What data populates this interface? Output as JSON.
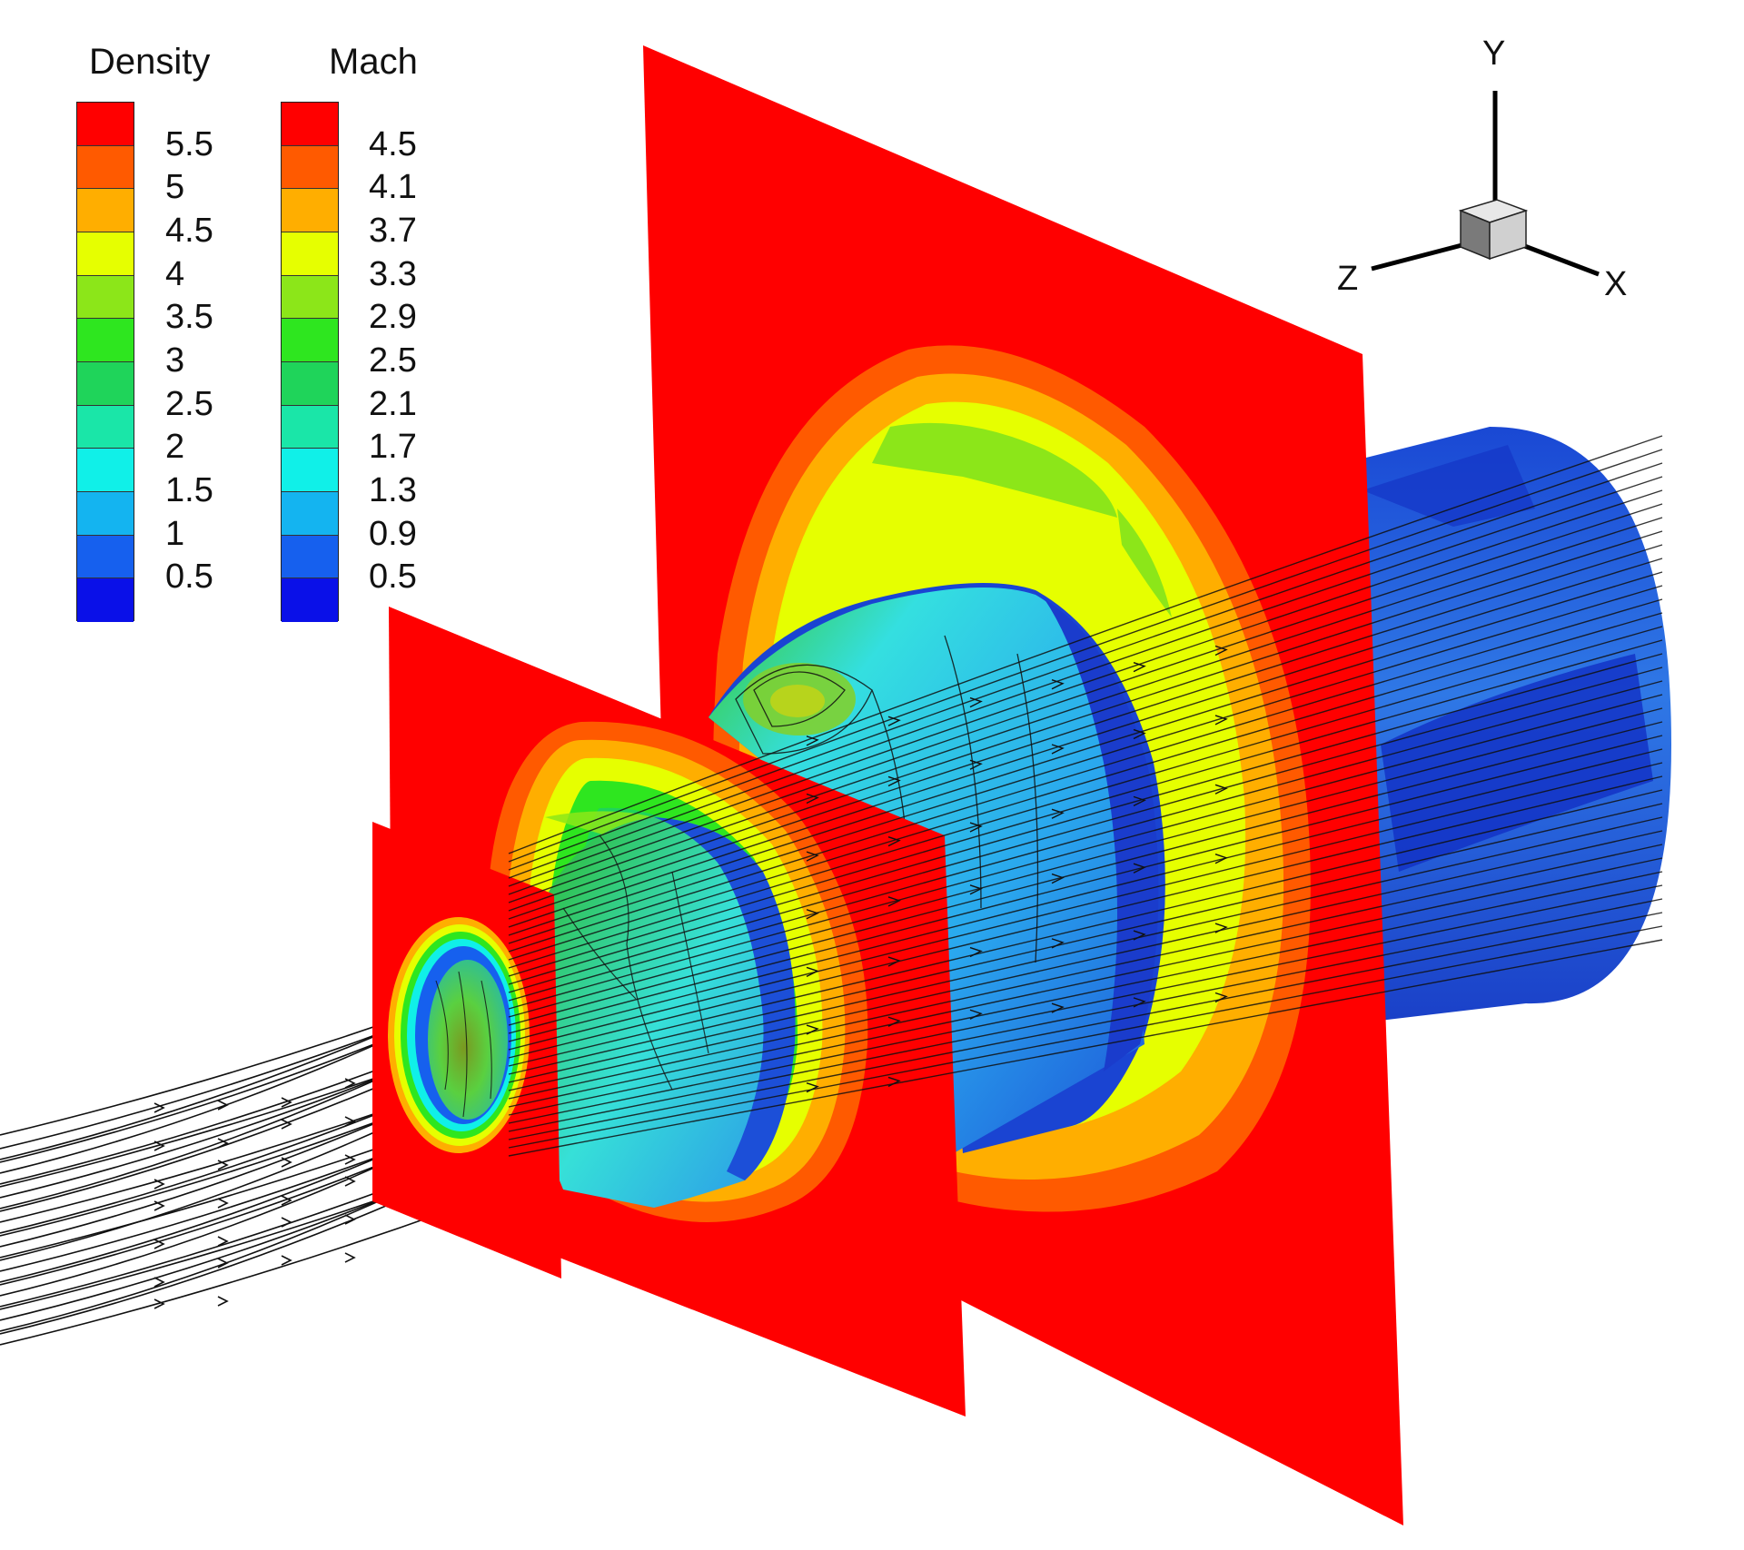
{
  "legends": [
    {
      "title": "Density",
      "levels": [
        "5.5",
        "5",
        "4.5",
        "4",
        "3.5",
        "3",
        "2.5",
        "2",
        "1.5",
        "1",
        "0.5"
      ]
    },
    {
      "title": "Mach",
      "levels": [
        "4.5",
        "4.1",
        "3.7",
        "3.3",
        "2.9",
        "2.5",
        "2.1",
        "1.7",
        "1.3",
        "0.9",
        "0.5"
      ]
    }
  ],
  "palette": [
    "#ff0000",
    "#ff5a00",
    "#ffae00",
    "#e6ff00",
    "#8ce619",
    "#2ee61f",
    "#1fd45a",
    "#1ae6a8",
    "#10f0e8",
    "#14b4f0",
    "#1660ee",
    "#0a10e8"
  ],
  "axes": {
    "x": "X",
    "y": "Y",
    "z": "Z"
  },
  "surface_colors": {
    "plane_background": "#ff0000",
    "jet_dark_blue": "#1c4fd8",
    "jet_mid_blue": "#2e86ea",
    "jet_cyan": "#36e2e8",
    "jet_green": "#5fcf3a",
    "streamline": "#111111"
  }
}
